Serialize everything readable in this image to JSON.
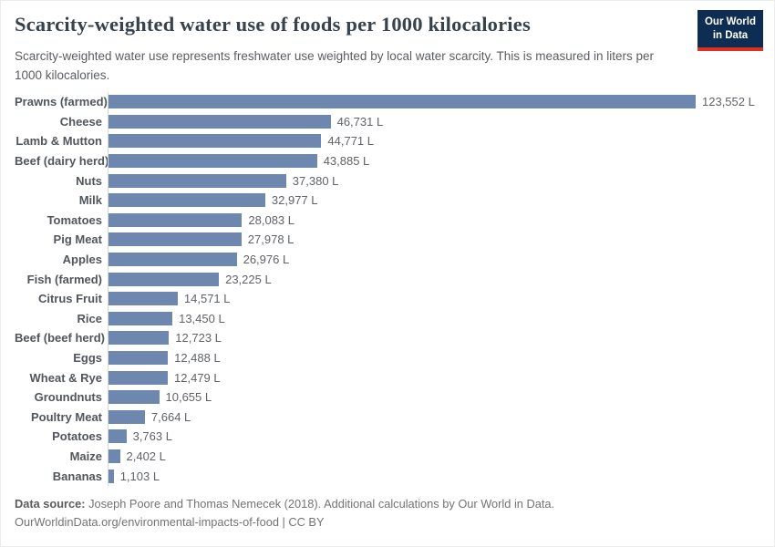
{
  "header": {
    "title": "Scarcity-weighted water use of foods per 1000 kilocalories",
    "subtitle": "Scarcity-weighted water use represents freshwater use weighted by local water scarcity. This is measured in liters per 1000 kilocalories.",
    "logo": {
      "line1": "Our World",
      "line2": "in Data",
      "bg_color": "#0d2d52",
      "accent_color": "#dc3022"
    }
  },
  "chart_data": {
    "type": "bar",
    "orientation": "horizontal",
    "title": "Scarcity-weighted water use of foods per 1000 kilocalories",
    "unit": "liters per 1000 kilocalories",
    "bar_color": "#6e87af",
    "axis_line_color": "#d9d9d9",
    "grid": false,
    "legend": "none",
    "xlim": [
      0,
      123552
    ],
    "categories": [
      "Prawns (farmed)",
      "Cheese",
      "Lamb & Mutton",
      "Beef (dairy herd)",
      "Nuts",
      "Milk",
      "Tomatoes",
      "Pig Meat",
      "Apples",
      "Fish (farmed)",
      "Citrus Fruit",
      "Rice",
      "Beef (beef herd)",
      "Eggs",
      "Wheat & Rye",
      "Groundnuts",
      "Poultry Meat",
      "Potatoes",
      "Maize",
      "Bananas"
    ],
    "values": [
      123552,
      46731,
      44771,
      43885,
      37380,
      32977,
      28083,
      27978,
      26976,
      23225,
      14571,
      13450,
      12723,
      12488,
      12479,
      10655,
      7664,
      3763,
      2402,
      1103
    ],
    "value_labels": [
      "123,552 L",
      "46,731 L",
      "44,771 L",
      "43,885 L",
      "37,380 L",
      "32,977 L",
      "28,083 L",
      "27,978 L",
      "26,976 L",
      "23,225 L",
      "14,571 L",
      "13,450 L",
      "12,723 L",
      "12,488 L",
      "12,479 L",
      "10,655 L",
      "7,664 L",
      "3,763 L",
      "2,402 L",
      "1,103 L"
    ]
  },
  "footer": {
    "datasource_label": "Data source:",
    "datasource_text": " Joseph Poore and Thomas Nemecek (2018). Additional calculations by Our World in Data.",
    "link_line": "OurWorldinData.org/environmental-impacts-of-food | CC BY"
  }
}
